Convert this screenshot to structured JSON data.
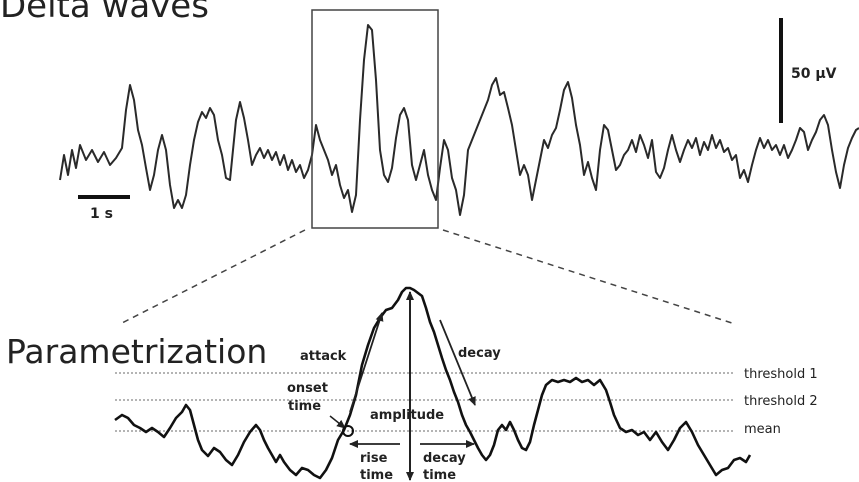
{
  "title": "Delta waves",
  "subtitle": "Parametrization",
  "scale": {
    "amplitude": "50 µV",
    "time": "1 s"
  },
  "labels": {
    "attack": "attack",
    "decay": "decay",
    "onset_line1": "onset",
    "onset_line2": "time",
    "amplitude": "amplitude",
    "rise_line1": "rise",
    "rise_line2": "time",
    "decay_time_line1": "decay",
    "decay_time_line2": "time"
  },
  "reference_lines": {
    "threshold1": "threshold 1",
    "threshold2": "threshold 2",
    "mean": "mean"
  },
  "colors": {
    "trace": "#2a2a2a",
    "guide": "#888888",
    "text": "#222222"
  }
}
